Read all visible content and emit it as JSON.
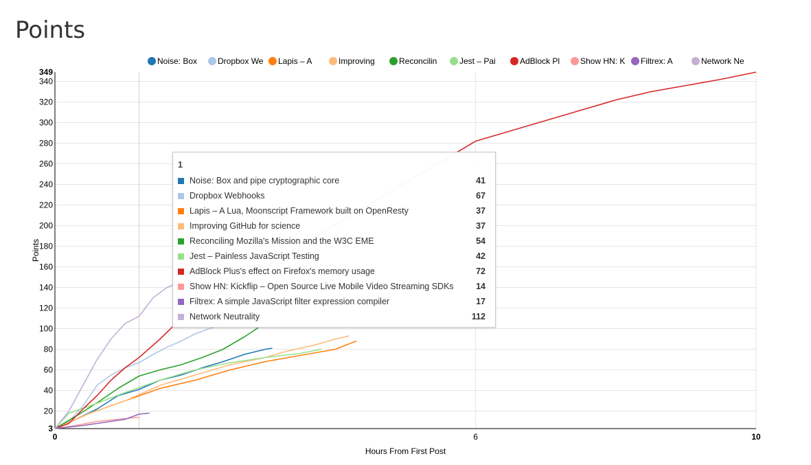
{
  "title": "Points",
  "tooltip": {
    "header": "1",
    "rows": [
      {
        "label": "Noise: Box and pipe cryptographic core",
        "value": "41"
      },
      {
        "label": "Dropbox Webhooks",
        "value": "67"
      },
      {
        "label": "Lapis – A Lua, Moonscript Framework built on OpenResty",
        "value": "37"
      },
      {
        "label": "Improving GitHub for science",
        "value": "37"
      },
      {
        "label": "Reconciling Mozilla's Mission and the W3C EME",
        "value": "54"
      },
      {
        "label": "Jest – Painless JavaScript Testing",
        "value": "42"
      },
      {
        "label": "AdBlock Plus's effect on Firefox's memory usage",
        "value": "72"
      },
      {
        "label": "Show HN: Kickflip – Open Source Live Mobile Video Streaming SDKs",
        "value": "14"
      },
      {
        "label": "Filtrex: A simple JavaScript filter expression compiler",
        "value": "17"
      },
      {
        "label": "Network Neutrality",
        "value": "112"
      }
    ]
  },
  "chart_data": {
    "type": "line",
    "xlabel": "Hours From First Post",
    "ylabel": "Points",
    "xlim": [
      0,
      10
    ],
    "ylim": [
      3,
      349
    ],
    "x_ticks": [
      0,
      6,
      10
    ],
    "y_ticks": [
      20,
      40,
      60,
      80,
      100,
      120,
      140,
      160,
      180,
      200,
      220,
      240,
      260,
      280,
      300,
      320,
      340
    ],
    "y_extent_labels": [
      "3",
      "349"
    ],
    "x_extent_labels": [
      "0",
      "10"
    ],
    "hover_x": 1.2,
    "grid": true,
    "legend_position": "top",
    "series": [
      {
        "name": "Noise: Box",
        "color": "#1f77b4",
        "x": [
          0,
          0.3,
          0.6,
          0.9,
          1.2,
          1.5,
          1.8,
          2.1,
          2.4,
          2.7,
          3.0,
          3.1
        ],
        "y": [
          3,
          12,
          22,
          35,
          41,
          50,
          55,
          62,
          68,
          75,
          80,
          81
        ]
      },
      {
        "name": "Dropbox We",
        "color": "#aec7e8",
        "x": [
          0,
          0.2,
          0.4,
          0.6,
          0.8,
          1.0,
          1.2,
          1.4,
          1.6,
          1.8,
          2.0,
          2.2,
          2.4
        ],
        "y": [
          3,
          10,
          25,
          45,
          55,
          62,
          67,
          75,
          82,
          88,
          95,
          100,
          104
        ]
      },
      {
        "name": "Lapis – A",
        "color": "#ff7f0e",
        "x": [
          0,
          0.5,
          1.0,
          1.5,
          2.0,
          2.5,
          3.0,
          3.5,
          4.0,
          4.3
        ],
        "y": [
          3,
          18,
          30,
          42,
          50,
          60,
          68,
          74,
          80,
          88
        ]
      },
      {
        "name": "Improving",
        "color": "#ffbb78",
        "x": [
          0,
          0.5,
          1.0,
          1.5,
          2.0,
          2.5,
          3.0,
          3.3,
          3.7,
          4.0,
          4.2
        ],
        "y": [
          3,
          18,
          30,
          45,
          55,
          65,
          72,
          78,
          84,
          90,
          93
        ]
      },
      {
        "name": "Reconcilin",
        "color": "#2ca02c",
        "x": [
          0,
          0.3,
          0.6,
          0.9,
          1.2,
          1.5,
          1.8,
          2.1,
          2.4,
          2.7,
          2.9
        ],
        "y": [
          3,
          15,
          28,
          42,
          54,
          60,
          65,
          72,
          80,
          92,
          101
        ]
      },
      {
        "name": "Jest – Pai",
        "color": "#98df8a",
        "x": [
          0,
          0.2,
          0.5,
          1.0,
          1.5,
          2.0,
          2.5,
          3.0,
          3.5,
          3.8
        ],
        "y": [
          3,
          18,
          25,
          38,
          50,
          60,
          67,
          72,
          76,
          80
        ]
      },
      {
        "name": "AdBlock Pl",
        "color": "#d62728",
        "x": [
          0,
          0.2,
          0.4,
          0.6,
          0.8,
          1.0,
          1.2,
          1.5,
          1.8,
          2.0,
          6.0,
          6.5,
          7.0,
          7.5,
          8.0,
          8.5,
          9.0,
          9.5,
          10.0
        ],
        "y": [
          3,
          8,
          22,
          35,
          50,
          62,
          72,
          90,
          110,
          120,
          282,
          292,
          302,
          312,
          322,
          330,
          336,
          342,
          349
        ]
      },
      {
        "name": "Show HN: K",
        "color": "#ff9896",
        "x": [
          0,
          0.3,
          0.6,
          0.9,
          1.2
        ],
        "y": [
          3,
          6,
          10,
          12,
          14
        ]
      },
      {
        "name": "Filtrex: A",
        "color": "#9467bd",
        "x": [
          0,
          0.4,
          0.8,
          1.0,
          1.2,
          1.35
        ],
        "y": [
          3,
          6,
          10,
          12,
          17,
          18
        ]
      },
      {
        "name": "Network Ne",
        "color": "#c5b0d5",
        "x": [
          0,
          0.2,
          0.4,
          0.6,
          0.8,
          1.0,
          1.2,
          1.4,
          1.6,
          1.8
        ],
        "y": [
          3,
          20,
          45,
          70,
          90,
          105,
          112,
          130,
          140,
          146
        ]
      }
    ]
  }
}
